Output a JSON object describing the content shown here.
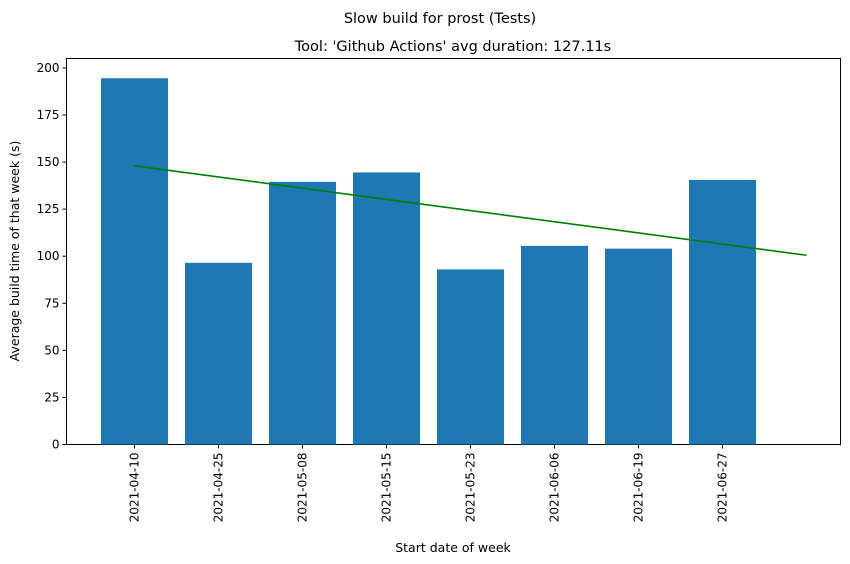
{
  "chart_data": {
    "type": "bar",
    "suptitle": "Slow build for prost (Tests)",
    "title": "Tool: 'Github Actions' avg duration: 127.11s",
    "xlabel": "Start date of week",
    "ylabel": "Average build time of that week (s)",
    "categories": [
      "2021-04-10",
      "2021-04-25",
      "2021-05-08",
      "2021-05-15",
      "2021-05-23",
      "2021-06-06",
      "2021-06-19",
      "2021-06-27"
    ],
    "values": [
      194.5,
      96.5,
      139.5,
      144.5,
      93.0,
      105.5,
      104.0,
      140.5
    ],
    "ylim": [
      0,
      205
    ],
    "yticks": [
      0,
      25,
      50,
      75,
      100,
      125,
      150,
      175,
      200
    ],
    "grid": false,
    "bar_color": "#1f77b4",
    "trend": {
      "color": "#008000",
      "start": 148,
      "end": 100.5,
      "extends_past_last_category": 1
    }
  }
}
